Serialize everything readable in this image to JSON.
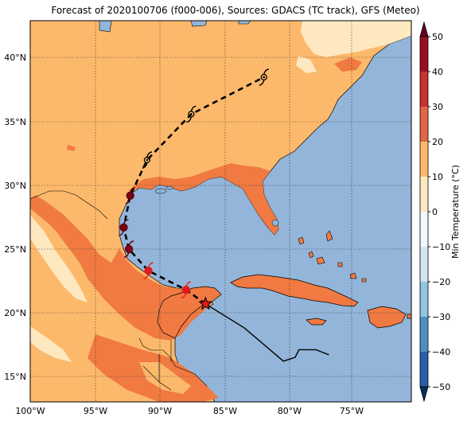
{
  "title": "Forecast of 2020100706 (f000-006), Sources: GDACS (TC track), GFS (Meteo)",
  "colorbar": {
    "label": "Min Temperature (°C)",
    "ticks": [
      "50",
      "40",
      "30",
      "20",
      "10",
      "0",
      "−10",
      "−20",
      "−30",
      "−40",
      "−50"
    ],
    "colors": [
      "#67001f",
      "#b2182b",
      "#d6604d",
      "#f4a582",
      "#fddbc7",
      "#f7f7f7",
      "#d1e5f0",
      "#92c5de",
      "#4393c3",
      "#2166ac",
      "#053061"
    ]
  },
  "map": {
    "lon_ticks": [
      "100°W",
      "95°W",
      "90°W",
      "85°W",
      "80°W",
      "75°W"
    ],
    "lat_ticks": [
      "40°N",
      "35°N",
      "30°N",
      "25°N",
      "20°N",
      "15°N"
    ],
    "ocean_color": "#93b5d9",
    "land_color": "#fdb96b",
    "warm_color": "#f07a42",
    "cool_color": "#fee8c0"
  },
  "track_forecast": [
    {
      "lon": -86.5,
      "lat": 20.7,
      "type": "current-star"
    },
    {
      "lon": -88.0,
      "lat": 21.8
    },
    {
      "lon": -90.9,
      "lat": 23.3
    },
    {
      "lon": -92.4,
      "lat": 25.0
    },
    {
      "lon": -92.8,
      "lat": 26.7
    },
    {
      "lon": -92.3,
      "lat": 29.2
    },
    {
      "lon": -91.0,
      "lat": 32.0
    },
    {
      "lon": -87.6,
      "lat": 35.6
    },
    {
      "lon": -82.0,
      "lat": 38.5
    }
  ],
  "track_past": [
    {
      "lon": -86.5,
      "lat": 20.7
    },
    {
      "lon": -83.5,
      "lat": 18.8
    },
    {
      "lon": -80.5,
      "lat": 16.2
    },
    {
      "lon": -79.6,
      "lat": 16.5
    },
    {
      "lon": -79.3,
      "lat": 17.1
    },
    {
      "lon": -78.0,
      "lat": 17.1
    },
    {
      "lon": -77.0,
      "lat": 16.7
    }
  ]
}
